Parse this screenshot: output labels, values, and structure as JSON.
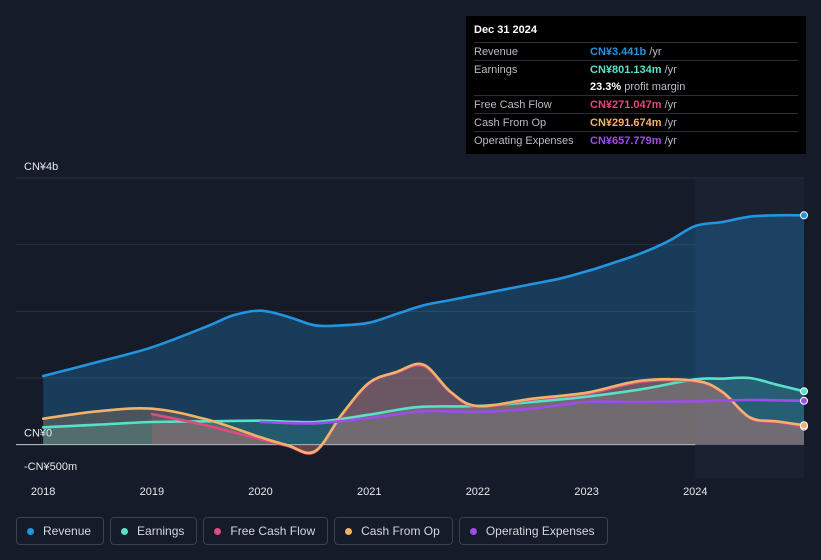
{
  "chart_data": {
    "type": "area",
    "y_unit": "CN¥m",
    "ylim": [
      -500,
      4000
    ],
    "y_tick_labels": [
      {
        "value": 4000,
        "label": "CN¥4b"
      },
      {
        "value": 0,
        "label": "CN¥0"
      },
      {
        "value": -500,
        "label": "-CN¥500m"
      }
    ],
    "y_gridlines": [
      4000,
      3000,
      2000,
      1000,
      0
    ],
    "x_range": [
      2017.75,
      2025.0
    ],
    "x_ticks": [
      {
        "value": 2018,
        "label": "2018"
      },
      {
        "value": 2019,
        "label": "2019"
      },
      {
        "value": 2020,
        "label": "2020"
      },
      {
        "value": 2021,
        "label": "2021"
      },
      {
        "value": 2022,
        "label": "2022"
      },
      {
        "value": 2023,
        "label": "2023"
      },
      {
        "value": 2024,
        "label": "2024"
      }
    ],
    "past_region_start": 2018.0,
    "past_region_end": 2019.0,
    "highlight_start": 2024.0,
    "series": [
      {
        "name": "Revenue",
        "color": "#2394df",
        "fill": true,
        "points": [
          [
            2018.0,
            1030
          ],
          [
            2018.5,
            1240
          ],
          [
            2019.0,
            1460
          ],
          [
            2019.5,
            1770
          ],
          [
            2019.75,
            1940
          ],
          [
            2020.0,
            2010
          ],
          [
            2020.25,
            1920
          ],
          [
            2020.5,
            1790
          ],
          [
            2020.75,
            1790
          ],
          [
            2021.0,
            1830
          ],
          [
            2021.25,
            1960
          ],
          [
            2021.5,
            2090
          ],
          [
            2021.75,
            2170
          ],
          [
            2022.0,
            2250
          ],
          [
            2022.25,
            2330
          ],
          [
            2022.5,
            2410
          ],
          [
            2022.75,
            2490
          ],
          [
            2023.0,
            2600
          ],
          [
            2023.25,
            2730
          ],
          [
            2023.5,
            2870
          ],
          [
            2023.75,
            3050
          ],
          [
            2024.0,
            3280
          ],
          [
            2024.25,
            3340
          ],
          [
            2024.5,
            3420
          ],
          [
            2024.75,
            3440
          ],
          [
            2025.0,
            3441
          ]
        ]
      },
      {
        "name": "Earnings",
        "color": "#58e1c9",
        "fill": true,
        "points": [
          [
            2018.0,
            260
          ],
          [
            2018.5,
            300
          ],
          [
            2019.0,
            340
          ],
          [
            2019.5,
            350
          ],
          [
            2020.0,
            360
          ],
          [
            2020.5,
            340
          ],
          [
            2021.0,
            450
          ],
          [
            2021.25,
            520
          ],
          [
            2021.5,
            570
          ],
          [
            2022.0,
            580
          ],
          [
            2022.5,
            640
          ],
          [
            2023.0,
            720
          ],
          [
            2023.5,
            830
          ],
          [
            2024.0,
            980
          ],
          [
            2024.25,
            990
          ],
          [
            2024.5,
            1000
          ],
          [
            2024.75,
            900
          ],
          [
            2025.0,
            801
          ]
        ]
      },
      {
        "name": "Free Cash Flow",
        "color": "#e04a80",
        "fill": true,
        "points": [
          [
            2019.0,
            460
          ],
          [
            2019.5,
            290
          ],
          [
            2020.0,
            80
          ],
          [
            2020.25,
            -20
          ],
          [
            2020.5,
            -110
          ],
          [
            2020.75,
            450
          ],
          [
            2021.0,
            920
          ],
          [
            2021.25,
            1080
          ],
          [
            2021.5,
            1180
          ],
          [
            2021.75,
            780
          ],
          [
            2022.0,
            570
          ],
          [
            2022.5,
            680
          ],
          [
            2023.0,
            760
          ],
          [
            2023.5,
            940
          ],
          [
            2024.0,
            950
          ],
          [
            2024.25,
            780
          ],
          [
            2024.5,
            400
          ],
          [
            2024.75,
            340
          ],
          [
            2025.0,
            271
          ]
        ]
      },
      {
        "name": "Cash From Op",
        "color": "#f2b26a",
        "fill": true,
        "points": [
          [
            2018.0,
            390
          ],
          [
            2018.5,
            500
          ],
          [
            2019.0,
            540
          ],
          [
            2019.5,
            380
          ],
          [
            2020.0,
            110
          ],
          [
            2020.25,
            -10
          ],
          [
            2020.5,
            -100
          ],
          [
            2020.75,
            460
          ],
          [
            2021.0,
            930
          ],
          [
            2021.25,
            1090
          ],
          [
            2021.5,
            1200
          ],
          [
            2021.75,
            790
          ],
          [
            2022.0,
            580
          ],
          [
            2022.5,
            690
          ],
          [
            2023.0,
            780
          ],
          [
            2023.5,
            960
          ],
          [
            2024.0,
            960
          ],
          [
            2024.25,
            790
          ],
          [
            2024.5,
            410
          ],
          [
            2024.75,
            350
          ],
          [
            2025.0,
            292
          ]
        ]
      },
      {
        "name": "Operating Expenses",
        "color": "#9d4ee8",
        "fill": false,
        "points": [
          [
            2020.0,
            340
          ],
          [
            2020.5,
            320
          ],
          [
            2021.0,
            400
          ],
          [
            2021.5,
            500
          ],
          [
            2022.0,
            490
          ],
          [
            2022.5,
            540
          ],
          [
            2023.0,
            640
          ],
          [
            2023.5,
            640
          ],
          [
            2024.0,
            650
          ],
          [
            2024.5,
            670
          ],
          [
            2025.0,
            658
          ]
        ]
      }
    ]
  },
  "tooltip": {
    "date": "Dec 31 2024",
    "rows": [
      {
        "label": "Revenue",
        "value": "CN¥3.441b",
        "unit": "/yr",
        "color": "#2394df"
      },
      {
        "label": "Earnings",
        "value": "CN¥801.134m",
        "unit": "/yr",
        "color": "#58e1c9"
      },
      {
        "label": "",
        "value": "23.3%",
        "unit": "profit margin",
        "color": "#ffffff"
      },
      {
        "label": "Free Cash Flow",
        "value": "CN¥271.047m",
        "unit": "/yr",
        "color": "#e04a80"
      },
      {
        "label": "Cash From Op",
        "value": "CN¥291.674m",
        "unit": "/yr",
        "color": "#f2b26a"
      },
      {
        "label": "Operating Expenses",
        "value": "CN¥657.779m",
        "unit": "/yr",
        "color": "#9d4ee8"
      }
    ]
  },
  "legend": [
    {
      "label": "Revenue",
      "color": "#2394df"
    },
    {
      "label": "Earnings",
      "color": "#58e1c9"
    },
    {
      "label": "Free Cash Flow",
      "color": "#e04a80"
    },
    {
      "label": "Cash From Op",
      "color": "#f2b26a"
    },
    {
      "label": "Operating Expenses",
      "color": "#9d4ee8"
    }
  ]
}
